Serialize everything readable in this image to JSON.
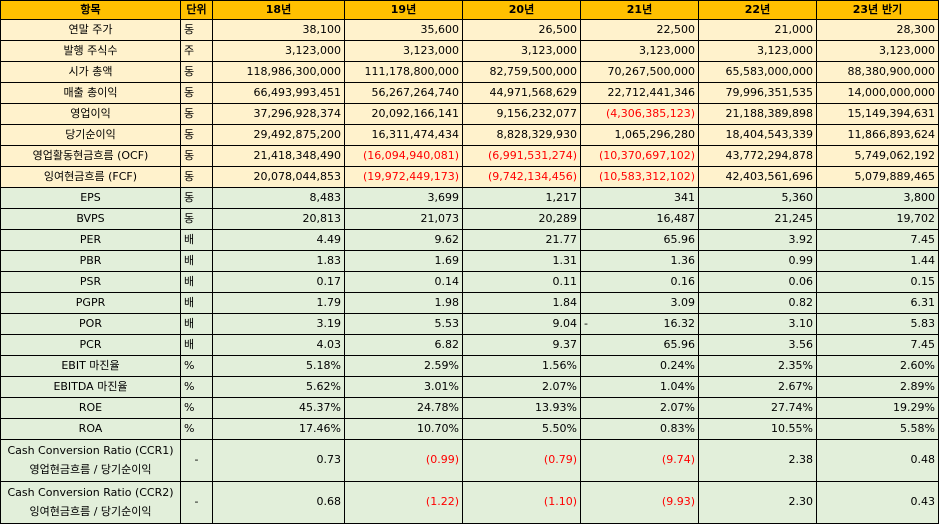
{
  "columns": [
    "항목",
    "단위",
    "18년",
    "19년",
    "20년",
    "21년",
    "22년",
    "23년 반기"
  ],
  "rows_a": [
    {
      "label": "연말 주가",
      "unit": "동",
      "values": [
        "38,100",
        "35,600",
        "26,500",
        "22,500",
        "21,000",
        "28,300"
      ]
    },
    {
      "label": "발행 주식수",
      "unit": "주",
      "values": [
        "3,123,000",
        "3,123,000",
        "3,123,000",
        "3,123,000",
        "3,123,000",
        "3,123,000"
      ]
    },
    {
      "label": "시가 총액",
      "unit": "동",
      "values": [
        "118,986,300,000",
        "111,178,800,000",
        "82,759,500,000",
        "70,267,500,000",
        "65,583,000,000",
        "88,380,900,000"
      ]
    },
    {
      "label": "매출 총이익",
      "unit": "동",
      "values": [
        "66,493,993,451",
        "56,267,264,740",
        "44,971,568,629",
        "22,712,441,346",
        "79,996,351,535",
        "14,000,000,000"
      ]
    },
    {
      "label": "영업이익",
      "unit": "동",
      "values": [
        "37,296,928,374",
        "20,092,166,141",
        "9,156,232,077",
        "(4,306,385,123)",
        "21,188,389,898",
        "15,149,394,631"
      ]
    },
    {
      "label": "당기순이익",
      "unit": "동",
      "values": [
        "29,492,875,200",
        "16,311,474,434",
        "8,828,329,930",
        "1,065,296,280",
        "18,404,543,339",
        "11,866,893,624"
      ]
    },
    {
      "label": "영업활동현금흐름 (OCF)",
      "unit": "동",
      "values": [
        "21,418,348,490",
        "(16,094,940,081)",
        "(6,991,531,274)",
        "(10,370,697,102)",
        "43,772,294,878",
        "5,749,062,192"
      ]
    },
    {
      "label": "잉여현금흐름 (FCF)",
      "unit": "동",
      "values": [
        "20,078,044,853",
        "(19,972,449,173)",
        "(9,742,134,456)",
        "(10,583,312,102)",
        "42,403,561,696",
        "5,079,889,465"
      ]
    }
  ],
  "rows_b": [
    {
      "label": "EPS",
      "unit": "동",
      "values": [
        "8,483",
        "3,699",
        "1,217",
        "341",
        "5,360",
        "3,800"
      ]
    },
    {
      "label": "BVPS",
      "unit": "동",
      "values": [
        "20,813",
        "21,073",
        "20,289",
        "16,487",
        "21,245",
        "19,702"
      ]
    },
    {
      "label": "PER",
      "unit": "배",
      "values": [
        "4.49",
        "9.62",
        "21.77",
        "65.96",
        "3.92",
        "7.45"
      ]
    },
    {
      "label": "PBR",
      "unit": "배",
      "values": [
        "1.83",
        "1.69",
        "1.31",
        "1.36",
        "0.99",
        "1.44"
      ]
    },
    {
      "label": "PSR",
      "unit": "배",
      "values": [
        "0.17",
        "0.14",
        "0.11",
        "0.16",
        "0.06",
        "0.15"
      ]
    },
    {
      "label": "PGPR",
      "unit": "배",
      "values": [
        "1.79",
        "1.98",
        "1.84",
        "3.09",
        "0.82",
        "6.31"
      ]
    },
    {
      "label": "POR",
      "unit": "배",
      "values": [
        "3.19",
        "5.53",
        "9.04",
        "16.32",
        "3.10",
        "5.83"
      ],
      "dash": "-"
    },
    {
      "label": "PCR",
      "unit": "배",
      "values": [
        "4.03",
        "6.82",
        "9.37",
        "65.96",
        "3.56",
        "7.45"
      ]
    },
    {
      "label": "EBIT 마진율",
      "unit": "%",
      "values": [
        "5.18%",
        "2.59%",
        "1.56%",
        "0.24%",
        "2.35%",
        "2.60%"
      ]
    },
    {
      "label": "EBITDA 마진율",
      "unit": "%",
      "values": [
        "5.62%",
        "3.01%",
        "2.07%",
        "1.04%",
        "2.67%",
        "2.89%"
      ]
    },
    {
      "label": "ROE",
      "unit": "%",
      "values": [
        "45.37%",
        "24.78%",
        "13.93%",
        "2.07%",
        "27.74%",
        "19.29%"
      ]
    },
    {
      "label": "ROA",
      "unit": "%",
      "values": [
        "17.46%",
        "10.70%",
        "5.50%",
        "0.83%",
        "10.55%",
        "5.58%"
      ]
    }
  ],
  "rows_c": [
    {
      "label_line1": "Cash Conversion Ratio (CCR1)",
      "label_line2": "영업현금흐름 / 당기순이익",
      "unit": "-",
      "values": [
        "0.73",
        "(0.99)",
        "(0.79)",
        "(9.74)",
        "2.38",
        "0.48"
      ]
    },
    {
      "label_line1": "Cash Conversion Ratio (CCR2)",
      "label_line2": "잉여현금흐름 / 당기순이익",
      "unit": "-",
      "values": [
        "0.68",
        "(1.22)",
        "(1.10)",
        "(9.93)",
        "2.30",
        "0.43"
      ]
    }
  ],
  "colors": {
    "header_bg": "#ffc000",
    "group_a_bg": "#fff2cc",
    "group_b_bg": "#e2efda",
    "negative": "#ff0000"
  }
}
